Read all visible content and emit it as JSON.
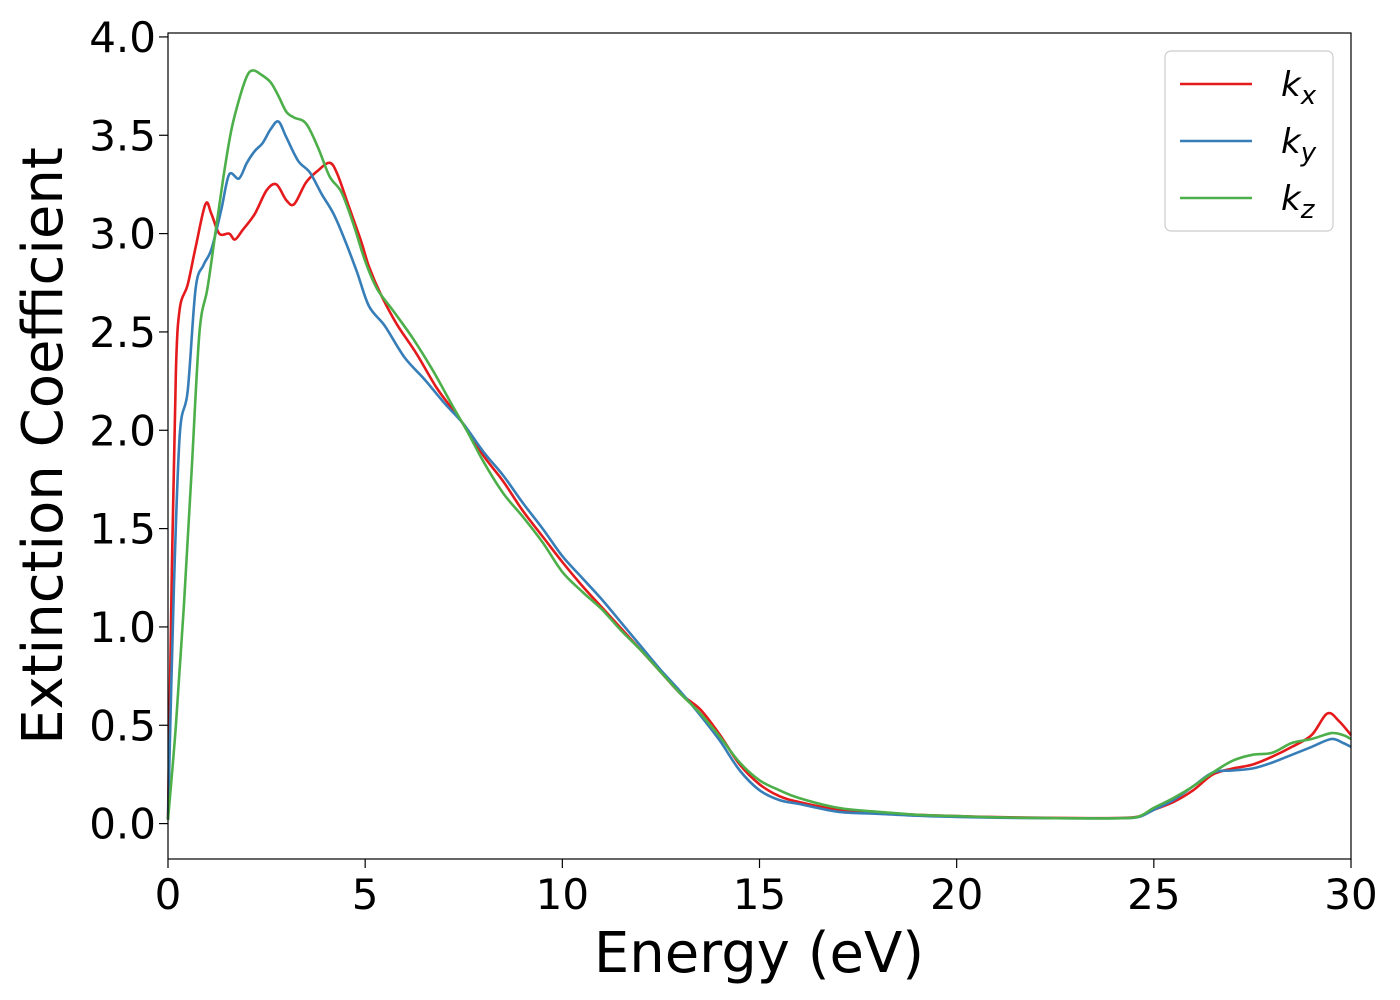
{
  "chart_data": {
    "type": "line",
    "xlabel": "Energy (eV)",
    "ylabel": "Extinction Coefficient",
    "xlim": [
      0,
      30
    ],
    "ylim": [
      -0.18,
      4.02
    ],
    "xticks": [
      0,
      5,
      10,
      15,
      20,
      25,
      30
    ],
    "xtick_labels": [
      "0",
      "5",
      "10",
      "15",
      "20",
      "25",
      "30"
    ],
    "yticks": [
      0.0,
      0.5,
      1.0,
      1.5,
      2.0,
      2.5,
      3.0,
      3.5,
      4.0
    ],
    "ytick_labels": [
      "0.0",
      "0.5",
      "1.0",
      "1.5",
      "2.0",
      "2.5",
      "3.0",
      "3.5",
      "4.0"
    ],
    "grid": false,
    "legend_position": "top-right",
    "series": [
      {
        "name": "k_x",
        "label_base": "k",
        "label_sub": "x",
        "color": "#e41a1c",
        "points": [
          [
            0,
            0.02
          ],
          [
            0.1,
            1.3
          ],
          [
            0.2,
            2.3
          ],
          [
            0.3,
            2.62
          ],
          [
            0.5,
            2.74
          ],
          [
            0.7,
            2.93
          ],
          [
            0.95,
            3.15
          ],
          [
            1.1,
            3.1
          ],
          [
            1.3,
            3.0
          ],
          [
            1.55,
            3.0
          ],
          [
            1.7,
            2.97
          ],
          [
            1.9,
            3.02
          ],
          [
            2.2,
            3.1
          ],
          [
            2.5,
            3.22
          ],
          [
            2.75,
            3.25
          ],
          [
            3.0,
            3.17
          ],
          [
            3.2,
            3.15
          ],
          [
            3.5,
            3.26
          ],
          [
            3.8,
            3.32
          ],
          [
            4.1,
            3.36
          ],
          [
            4.3,
            3.3
          ],
          [
            4.6,
            3.13
          ],
          [
            4.9,
            2.96
          ],
          [
            5.1,
            2.83
          ],
          [
            5.4,
            2.69
          ],
          [
            5.8,
            2.54
          ],
          [
            6.3,
            2.39
          ],
          [
            6.8,
            2.22
          ],
          [
            7.2,
            2.11
          ],
          [
            7.6,
            2.0
          ],
          [
            8.0,
            1.87
          ],
          [
            8.5,
            1.74
          ],
          [
            9.0,
            1.59
          ],
          [
            9.5,
            1.46
          ],
          [
            10.0,
            1.33
          ],
          [
            10.5,
            1.21
          ],
          [
            11.0,
            1.1
          ],
          [
            11.5,
            0.99
          ],
          [
            12.0,
            0.88
          ],
          [
            12.5,
            0.77
          ],
          [
            13.0,
            0.66
          ],
          [
            13.5,
            0.58
          ],
          [
            14.0,
            0.45
          ],
          [
            14.5,
            0.3
          ],
          [
            15.0,
            0.2
          ],
          [
            15.5,
            0.14
          ],
          [
            16.0,
            0.11
          ],
          [
            17.0,
            0.07
          ],
          [
            18.0,
            0.055
          ],
          [
            19.0,
            0.045
          ],
          [
            20.0,
            0.038
          ],
          [
            21.0,
            0.033
          ],
          [
            22.0,
            0.03
          ],
          [
            23.0,
            0.028
          ],
          [
            24.0,
            0.028
          ],
          [
            24.6,
            0.035
          ],
          [
            25.0,
            0.07
          ],
          [
            25.5,
            0.11
          ],
          [
            26.0,
            0.17
          ],
          [
            26.5,
            0.25
          ],
          [
            27.0,
            0.28
          ],
          [
            27.5,
            0.3
          ],
          [
            28.0,
            0.34
          ],
          [
            28.5,
            0.39
          ],
          [
            29.0,
            0.45
          ],
          [
            29.4,
            0.56
          ],
          [
            29.7,
            0.52
          ],
          [
            30.0,
            0.45
          ]
        ]
      },
      {
        "name": "k_y",
        "label_base": "k",
        "label_sub": "y",
        "color": "#377eb8",
        "points": [
          [
            0,
            0.02
          ],
          [
            0.15,
            1.2
          ],
          [
            0.3,
            1.98
          ],
          [
            0.5,
            2.2
          ],
          [
            0.7,
            2.72
          ],
          [
            0.9,
            2.84
          ],
          [
            1.1,
            2.92
          ],
          [
            1.35,
            3.12
          ],
          [
            1.55,
            3.3
          ],
          [
            1.8,
            3.28
          ],
          [
            2.0,
            3.36
          ],
          [
            2.2,
            3.42
          ],
          [
            2.4,
            3.46
          ],
          [
            2.6,
            3.53
          ],
          [
            2.8,
            3.57
          ],
          [
            3.0,
            3.49
          ],
          [
            3.3,
            3.37
          ],
          [
            3.6,
            3.31
          ],
          [
            3.9,
            3.2
          ],
          [
            4.2,
            3.1
          ],
          [
            4.5,
            2.96
          ],
          [
            4.8,
            2.8
          ],
          [
            5.1,
            2.63
          ],
          [
            5.5,
            2.53
          ],
          [
            6.0,
            2.37
          ],
          [
            6.5,
            2.26
          ],
          [
            7.0,
            2.14
          ],
          [
            7.5,
            2.03
          ],
          [
            8.0,
            1.89
          ],
          [
            8.5,
            1.77
          ],
          [
            9.0,
            1.63
          ],
          [
            9.5,
            1.5
          ],
          [
            10.0,
            1.36
          ],
          [
            10.5,
            1.25
          ],
          [
            11.0,
            1.14
          ],
          [
            11.5,
            1.02
          ],
          [
            12.0,
            0.9
          ],
          [
            12.5,
            0.78
          ],
          [
            13.0,
            0.67
          ],
          [
            13.5,
            0.55
          ],
          [
            14.0,
            0.42
          ],
          [
            14.5,
            0.27
          ],
          [
            15.0,
            0.17
          ],
          [
            15.5,
            0.12
          ],
          [
            16.0,
            0.1
          ],
          [
            17.0,
            0.06
          ],
          [
            18.0,
            0.05
          ],
          [
            19.0,
            0.04
          ],
          [
            20.0,
            0.034
          ],
          [
            21.0,
            0.03
          ],
          [
            22.0,
            0.028
          ],
          [
            23.0,
            0.027
          ],
          [
            24.0,
            0.027
          ],
          [
            24.6,
            0.033
          ],
          [
            25.0,
            0.07
          ],
          [
            25.5,
            0.12
          ],
          [
            26.0,
            0.19
          ],
          [
            26.5,
            0.26
          ],
          [
            27.0,
            0.27
          ],
          [
            27.5,
            0.28
          ],
          [
            28.0,
            0.31
          ],
          [
            28.5,
            0.35
          ],
          [
            29.0,
            0.39
          ],
          [
            29.5,
            0.43
          ],
          [
            29.8,
            0.41
          ],
          [
            30.0,
            0.39
          ]
        ]
      },
      {
        "name": "k_z",
        "label_base": "k",
        "label_sub": "z",
        "color": "#4daf4a",
        "points": [
          [
            0,
            0.02
          ],
          [
            0.2,
            0.5
          ],
          [
            0.4,
            1.1
          ],
          [
            0.6,
            1.8
          ],
          [
            0.8,
            2.5
          ],
          [
            1.0,
            2.72
          ],
          [
            1.2,
            3.0
          ],
          [
            1.4,
            3.28
          ],
          [
            1.6,
            3.52
          ],
          [
            1.8,
            3.68
          ],
          [
            2.0,
            3.8
          ],
          [
            2.15,
            3.83
          ],
          [
            2.35,
            3.81
          ],
          [
            2.6,
            3.77
          ],
          [
            2.8,
            3.7
          ],
          [
            3.0,
            3.62
          ],
          [
            3.2,
            3.59
          ],
          [
            3.5,
            3.56
          ],
          [
            3.8,
            3.44
          ],
          [
            4.1,
            3.29
          ],
          [
            4.4,
            3.21
          ],
          [
            4.7,
            3.05
          ],
          [
            5.0,
            2.86
          ],
          [
            5.3,
            2.72
          ],
          [
            5.7,
            2.61
          ],
          [
            6.2,
            2.47
          ],
          [
            6.7,
            2.31
          ],
          [
            7.2,
            2.13
          ],
          [
            7.6,
            1.99
          ],
          [
            8.0,
            1.84
          ],
          [
            8.5,
            1.68
          ],
          [
            9.0,
            1.56
          ],
          [
            9.5,
            1.43
          ],
          [
            10.0,
            1.28
          ],
          [
            10.5,
            1.18
          ],
          [
            11.0,
            1.09
          ],
          [
            11.5,
            0.98
          ],
          [
            12.0,
            0.88
          ],
          [
            12.5,
            0.77
          ],
          [
            13.0,
            0.66
          ],
          [
            13.5,
            0.56
          ],
          [
            14.0,
            0.44
          ],
          [
            14.5,
            0.31
          ],
          [
            15.0,
            0.22
          ],
          [
            15.5,
            0.17
          ],
          [
            16.0,
            0.13
          ],
          [
            17.0,
            0.08
          ],
          [
            18.0,
            0.06
          ],
          [
            19.0,
            0.045
          ],
          [
            20.0,
            0.038
          ],
          [
            21.0,
            0.032
          ],
          [
            22.0,
            0.029
          ],
          [
            23.0,
            0.027
          ],
          [
            24.0,
            0.027
          ],
          [
            24.6,
            0.035
          ],
          [
            25.0,
            0.08
          ],
          [
            25.5,
            0.13
          ],
          [
            26.0,
            0.19
          ],
          [
            26.5,
            0.26
          ],
          [
            27.0,
            0.32
          ],
          [
            27.5,
            0.35
          ],
          [
            28.0,
            0.36
          ],
          [
            28.5,
            0.41
          ],
          [
            29.0,
            0.43
          ],
          [
            29.5,
            0.46
          ],
          [
            29.8,
            0.45
          ],
          [
            30.0,
            0.43
          ]
        ]
      }
    ]
  }
}
